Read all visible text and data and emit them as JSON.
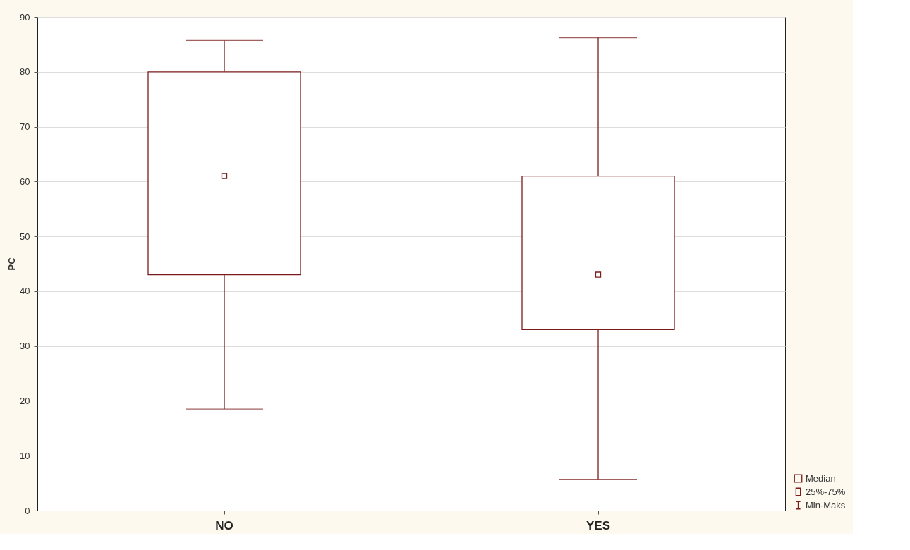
{
  "chart_data": {
    "type": "box",
    "ylabel": "PC",
    "categories": [
      "NO",
      "YES"
    ],
    "boxes": [
      {
        "low": 18.5,
        "q1": 43,
        "median": 61,
        "q3": 80,
        "high": 85.7
      },
      {
        "low": 5.6,
        "q1": 33,
        "median": 43,
        "q3": 61,
        "high": 86.2
      }
    ],
    "color": "#7b1c1c",
    "ylim": [
      0,
      90
    ],
    "yticks": [
      0,
      10,
      20,
      30,
      40,
      50,
      60,
      70,
      80,
      90
    ],
    "grid": "y",
    "annotations": [
      "Median",
      "25%-75%",
      "Min-Maks"
    ]
  }
}
